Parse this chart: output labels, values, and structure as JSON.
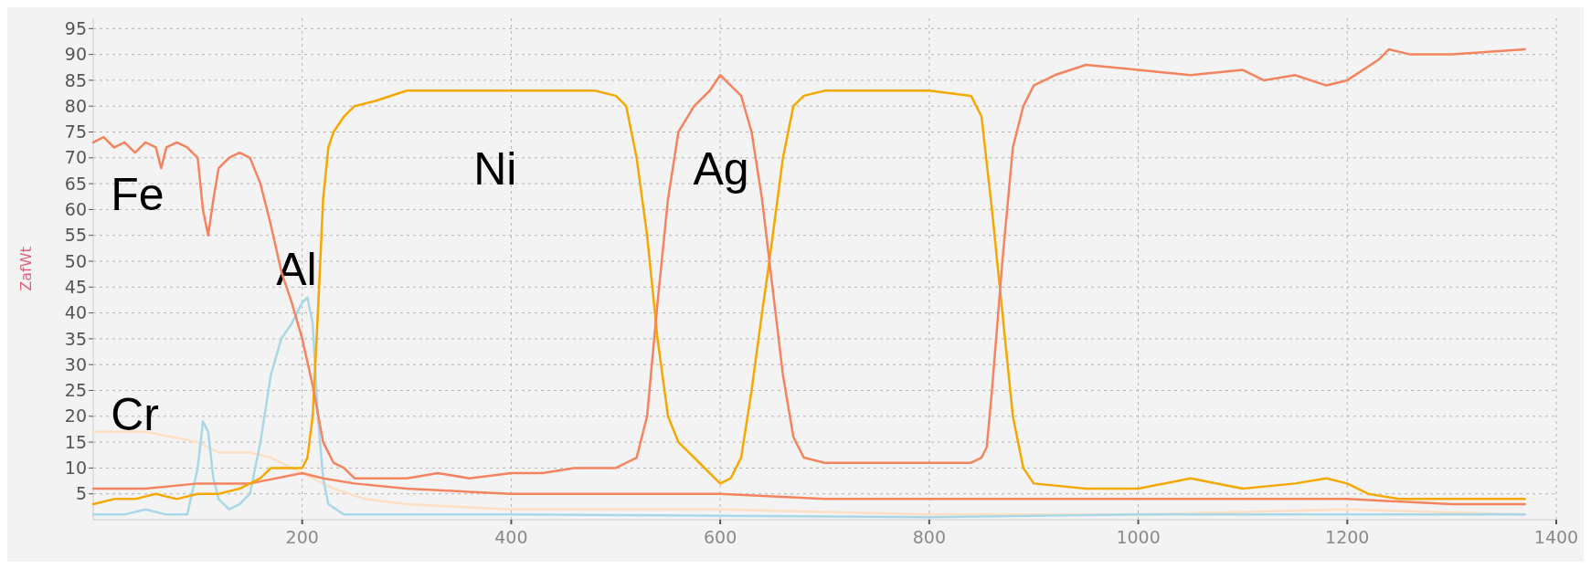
{
  "chart_data": {
    "type": "line",
    "ylabel": "ZafWt",
    "xlim": [
      0,
      1400
    ],
    "ylim": [
      0,
      97
    ],
    "xticks": [
      200,
      400,
      600,
      800,
      1000,
      1200,
      1400
    ],
    "yticks": [
      5,
      10,
      15,
      20,
      25,
      30,
      35,
      40,
      45,
      50,
      55,
      60,
      65,
      70,
      75,
      80,
      85,
      90,
      95
    ],
    "grid": true,
    "line_style": "solid",
    "marker": "none",
    "annotations": [
      "Fe",
      "Cr",
      "Al",
      "Ni",
      "Ag"
    ],
    "series": [
      {
        "color": "#fde0c4",
        "x": [
          0,
          50,
          100,
          120,
          150,
          170,
          200,
          230,
          260,
          300,
          400,
          600,
          800,
          1000,
          1200,
          1370
        ],
        "values": [
          17,
          17,
          15,
          13,
          13,
          12,
          9,
          6,
          4,
          3,
          2,
          2,
          1,
          1,
          2,
          1
        ]
      },
      {
        "color": "#a8d8e8",
        "x": [
          0,
          30,
          50,
          70,
          90,
          100,
          105,
          110,
          115,
          120,
          130,
          140,
          150,
          160,
          170,
          180,
          190,
          200,
          205,
          210,
          215,
          220,
          225,
          240,
          400,
          800,
          1000,
          1200,
          1370
        ],
        "values": [
          1,
          1,
          2,
          1,
          1,
          10,
          19,
          17,
          8,
          4,
          2,
          3,
          5,
          15,
          28,
          35,
          38,
          42,
          43,
          38,
          20,
          8,
          3,
          1,
          1,
          0.5,
          1,
          1,
          1
        ]
      },
      {
        "color": "#f4845f",
        "x": [
          0,
          50,
          100,
          150,
          200,
          220,
          250,
          300,
          400,
          500,
          600,
          700,
          800,
          900,
          1000,
          1100,
          1200,
          1300,
          1370
        ],
        "values": [
          6,
          6,
          7,
          7,
          9,
          8,
          7,
          6,
          5,
          5,
          5,
          4,
          4,
          4,
          4,
          4,
          4,
          3,
          3
        ]
      },
      {
        "color": "#f5a800",
        "x": [
          0,
          20,
          40,
          60,
          80,
          100,
          120,
          140,
          160,
          170,
          180,
          190,
          200,
          205,
          210,
          215,
          220,
          225,
          230,
          240,
          250,
          270,
          300,
          350,
          400,
          450,
          480,
          500,
          510,
          520,
          530,
          540,
          550,
          560,
          570,
          580,
          590,
          600,
          610,
          620,
          630,
          640,
          647,
          660,
          670,
          680,
          700,
          800,
          840,
          850,
          860,
          870,
          880,
          890,
          900,
          950,
          1000,
          1050,
          1100,
          1150,
          1180,
          1200,
          1220,
          1250,
          1300,
          1370
        ],
        "values": [
          3,
          4,
          4,
          5,
          4,
          5,
          5,
          6,
          8,
          10,
          10,
          10,
          10,
          12,
          20,
          40,
          62,
          72,
          75,
          78,
          80,
          81,
          83,
          83,
          83,
          83,
          83,
          82,
          80,
          70,
          55,
          35,
          20,
          15,
          13,
          11,
          9,
          7,
          8,
          12,
          25,
          40,
          50,
          70,
          80,
          82,
          83,
          83,
          82,
          78,
          60,
          40,
          20,
          10,
          7,
          6,
          6,
          8,
          6,
          7,
          8,
          7,
          5,
          4,
          4,
          4
        ]
      },
      {
        "color": "#f4845f",
        "x": [
          0,
          10,
          20,
          30,
          40,
          50,
          60,
          65,
          70,
          80,
          90,
          100,
          105,
          110,
          115,
          120,
          130,
          140,
          150,
          160,
          170,
          180,
          190,
          200,
          210,
          220,
          230,
          240,
          250,
          280,
          300,
          330,
          360,
          400,
          430,
          460,
          490,
          500,
          520,
          530,
          540,
          550,
          560,
          575,
          590,
          600,
          610,
          620,
          630,
          640,
          650,
          660,
          670,
          680,
          700,
          750,
          800,
          840,
          850,
          855,
          860,
          870,
          880,
          890,
          900,
          920,
          950,
          1000,
          1050,
          1100,
          1120,
          1150,
          1180,
          1200,
          1230,
          1240,
          1260,
          1300,
          1370
        ],
        "values": [
          73,
          74,
          72,
          73,
          71,
          73,
          72,
          68,
          72,
          73,
          72,
          70,
          60,
          55,
          62,
          68,
          70,
          71,
          70,
          65,
          57,
          48,
          42,
          35,
          26,
          15,
          11,
          10,
          8,
          8,
          8,
          9,
          8,
          9,
          9,
          10,
          10,
          10,
          12,
          20,
          42,
          62,
          75,
          80,
          83,
          86,
          84,
          82,
          75,
          62,
          45,
          28,
          16,
          12,
          11,
          11,
          11,
          11,
          12,
          14,
          25,
          50,
          72,
          80,
          84,
          86,
          88,
          87,
          86,
          87,
          85,
          86,
          84,
          85,
          89,
          91,
          90,
          90,
          91
        ]
      }
    ]
  }
}
